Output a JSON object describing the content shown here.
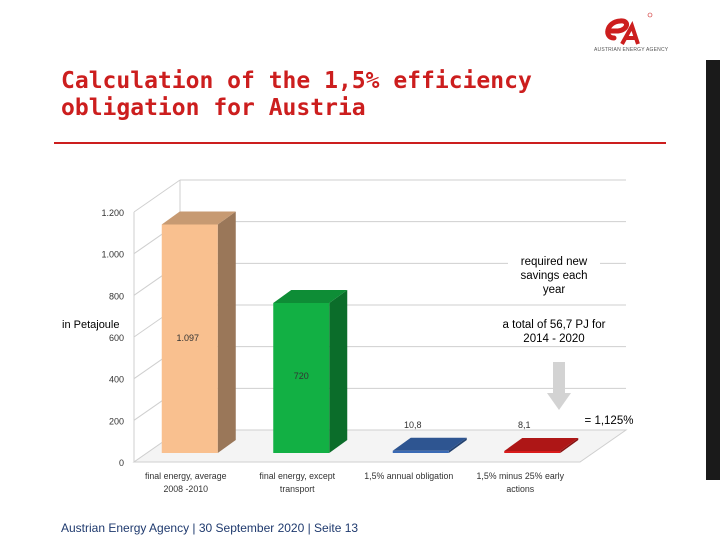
{
  "logo": {
    "tagline": "AUSTRIAN ENERGY AGENCY"
  },
  "title": "Calculation of the 1,5% efficiency obligation for Austria",
  "footer": "Austrian Energy Agency | 30 September 2020 | Seite 13",
  "annotations": {
    "required": "required new savings each year",
    "total": "a total of 56,7 PJ for 2014 - 2020",
    "ratio": "= 1,125%",
    "unit": "in Petajoule"
  },
  "colors": {
    "title": "#cc1e1e",
    "footer": "#1f3a6e"
  },
  "chart_data": {
    "type": "bar",
    "title": "",
    "ylabel": "in Petajoule",
    "xlabel": "",
    "ylim": [
      0,
      1200
    ],
    "yticks": [
      0,
      200,
      400,
      600,
      800,
      1000,
      1200
    ],
    "ytick_labels": [
      "0",
      "200",
      "400",
      "600",
      "800",
      "1.000",
      "1.200"
    ],
    "grid": true,
    "categories": [
      "final energy, average 2008 -2010",
      "final energy, except transport",
      "1,5% annual obligation",
      "1,5% minus 25% early actions"
    ],
    "values": [
      1097,
      720,
      10.8,
      8.1
    ],
    "value_labels": [
      "1.097",
      "720",
      "10,8",
      "8,1"
    ],
    "bar_colors": [
      "#f9c08f",
      "#12b044",
      "#3a6ab5",
      "#d91c1c"
    ]
  }
}
